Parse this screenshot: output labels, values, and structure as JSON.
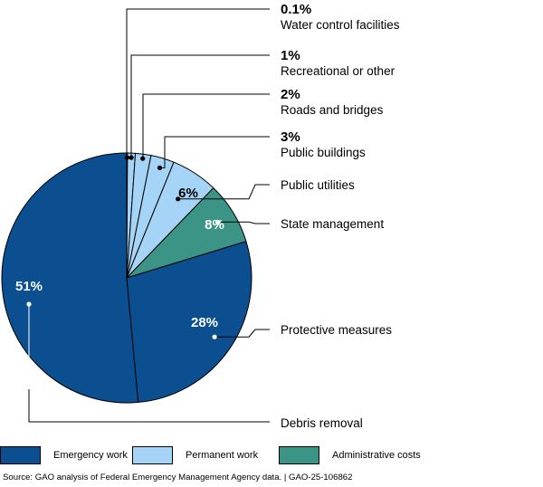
{
  "chart_data": {
    "type": "pie",
    "title": "",
    "slices": [
      {
        "label": "Water control facilities",
        "value": 0.1,
        "value_label": "0.1%",
        "category": "Permanent work"
      },
      {
        "label": "Recreational or other",
        "value": 1,
        "value_label": "1%",
        "category": "Permanent work"
      },
      {
        "label": "Roads and bridges",
        "value": 2,
        "value_label": "2%",
        "category": "Permanent work"
      },
      {
        "label": "Public buildings",
        "value": 3,
        "value_label": "3%",
        "category": "Permanent work"
      },
      {
        "label": "Public utilities",
        "value": 6,
        "value_label": "6%",
        "category": "Permanent work"
      },
      {
        "label": "State management",
        "value": 8,
        "value_label": "8%",
        "category": "Administrative costs"
      },
      {
        "label": "Protective measures",
        "value": 28,
        "value_label": "28%",
        "category": "Emergency work"
      },
      {
        "label": "Debris removal",
        "value": 51,
        "value_label": "51%",
        "category": "Emergency work"
      }
    ],
    "legend": [
      {
        "name": "Emergency work",
        "color": "#0b4f91"
      },
      {
        "name": "Permanent work",
        "color": "#a6d4f6"
      },
      {
        "name": "Administrative costs",
        "color": "#3b9485"
      }
    ],
    "legend_position": "bottom"
  },
  "source_text": "Source: GAO analysis of Federal Emergency Management Agency data.  |  GAO-25-106862"
}
